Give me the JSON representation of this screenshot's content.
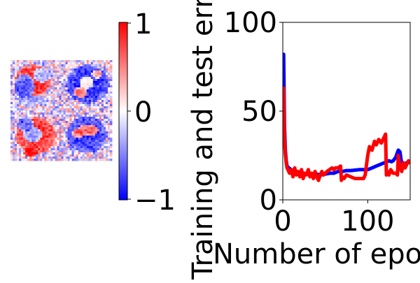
{
  "chart_data": [
    {
      "type": "heatmap",
      "title": "",
      "colormap": "bwr",
      "vmin": -1,
      "vmax": 1,
      "colorbar_ticks": [
        "1",
        "0",
        "−1"
      ],
      "tiles": [
        {
          "position": "top-left",
          "blobs": [
            {
              "cx": 0.45,
              "cy": 0.4,
              "rx": 0.36,
              "ry": 0.3,
              "value": 0.9
            },
            {
              "cx": 0.28,
              "cy": 0.52,
              "rx": 0.2,
              "ry": 0.24,
              "value": -0.95
            },
            {
              "cx": 0.62,
              "cy": 0.3,
              "rx": 0.18,
              "ry": 0.14,
              "value": -0.6
            },
            {
              "cx": 0.45,
              "cy": 0.8,
              "rx": 0.22,
              "ry": 0.1,
              "value": -0.4
            }
          ]
        },
        {
          "position": "top-right",
          "blobs": [
            {
              "cx": 0.52,
              "cy": 0.48,
              "rx": 0.42,
              "ry": 0.38,
              "value": -0.85
            },
            {
              "cx": 0.5,
              "cy": 0.45,
              "rx": 0.14,
              "ry": 0.12,
              "value": 0.3
            },
            {
              "cx": 0.38,
              "cy": 0.64,
              "rx": 0.14,
              "ry": 0.1,
              "value": 0.85
            },
            {
              "cx": 0.7,
              "cy": 0.28,
              "rx": 0.1,
              "ry": 0.08,
              "value": 0.6
            }
          ]
        },
        {
          "position": "bottom-left",
          "blobs": [
            {
              "cx": 0.5,
              "cy": 0.5,
              "rx": 0.4,
              "ry": 0.36,
              "value": 0.85
            },
            {
              "cx": 0.44,
              "cy": 0.48,
              "rx": 0.18,
              "ry": 0.16,
              "value": -0.7
            },
            {
              "cx": 0.4,
              "cy": 0.84,
              "rx": 0.14,
              "ry": 0.1,
              "value": 0.9
            },
            {
              "cx": 0.3,
              "cy": 0.28,
              "rx": 0.16,
              "ry": 0.14,
              "value": -0.8
            }
          ]
        },
        {
          "position": "bottom-right",
          "blobs": [
            {
              "cx": 0.5,
              "cy": 0.48,
              "rx": 0.4,
              "ry": 0.36,
              "value": -0.8
            },
            {
              "cx": 0.52,
              "cy": 0.4,
              "rx": 0.22,
              "ry": 0.12,
              "value": 0.85
            },
            {
              "cx": 0.32,
              "cy": 0.46,
              "rx": 0.1,
              "ry": 0.1,
              "value": 0.7
            },
            {
              "cx": 0.55,
              "cy": 0.72,
              "rx": 0.16,
              "ry": 0.1,
              "value": -0.6
            }
          ]
        }
      ]
    },
    {
      "type": "line",
      "title": "",
      "xlabel": "Number of epochs",
      "ylabel": "Training and test error",
      "xlim": [
        0,
        150
      ],
      "ylim": [
        0,
        100
      ],
      "xticks": [
        "0",
        "100"
      ],
      "yticks": [
        "0",
        "50",
        "100"
      ],
      "grid": false,
      "series": [
        {
          "color": "#0000ff",
          "x": [
            0,
            1,
            2,
            3,
            4,
            5,
            7,
            10,
            15,
            20,
            25,
            30,
            35,
            40,
            45,
            50,
            55,
            60,
            65,
            70,
            75,
            80,
            90,
            100,
            105,
            110,
            115,
            120,
            125,
            128,
            130,
            133,
            136,
            138,
            140,
            143,
            146,
            150
          ],
          "y": [
            50,
            82,
            42,
            28,
            22,
            19,
            18,
            17,
            16,
            15.5,
            15,
            14.5,
            14,
            14.5,
            14,
            14.5,
            15,
            15,
            16,
            16,
            16.5,
            16.5,
            17,
            17,
            18,
            19,
            20,
            21,
            22,
            21.5,
            22,
            24,
            28,
            27,
            20,
            19,
            21,
            21
          ]
        },
        {
          "color": "#ff0000",
          "x": [
            0,
            1,
            2,
            3,
            4,
            5,
            6,
            8,
            10,
            12,
            14,
            16,
            18,
            20,
            22,
            24,
            26,
            28,
            30,
            32,
            34,
            36,
            38,
            40,
            42,
            44,
            46,
            48,
            50,
            52,
            55,
            58,
            60,
            62,
            65,
            68,
            69,
            70,
            72,
            75,
            80,
            85,
            90,
            95,
            97,
            100,
            102,
            105,
            108,
            110,
            113,
            116,
            119,
            121,
            122,
            123,
            125,
            127,
            130,
            133,
            135,
            136,
            138,
            140,
            142,
            144,
            146,
            148,
            150
          ],
          "y": [
            50,
            63,
            35,
            26,
            21,
            18,
            17,
            15,
            17,
            13,
            18,
            14,
            16,
            13,
            17,
            12,
            15,
            14,
            17,
            13,
            15,
            12,
            16,
            13,
            11,
            14,
            16,
            14,
            15,
            16,
            17,
            18,
            17,
            18,
            18,
            19,
            11,
            13,
            12,
            14,
            13,
            12,
            12,
            12,
            14,
            25,
            30,
            28,
            33,
            31,
            34,
            32,
            35,
            37,
            14,
            16,
            14,
            17,
            15,
            15,
            14,
            25,
            18,
            16,
            21,
            18,
            20,
            22,
            21
          ]
        }
      ]
    }
  ]
}
